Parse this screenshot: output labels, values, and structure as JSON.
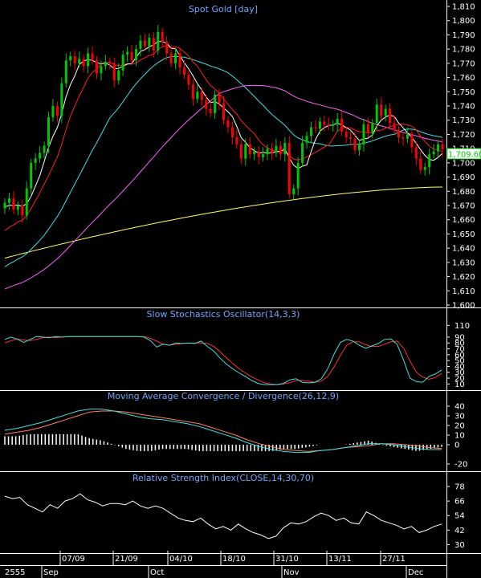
{
  "chart_data": [
    {
      "type": "candlestick",
      "title": "Spot Gold [day]",
      "ylim": [
        1600,
        1810
      ],
      "yticks": [
        1600,
        1610,
        1620,
        1630,
        1640,
        1650,
        1660,
        1670,
        1680,
        1690,
        1700,
        1710,
        1720,
        1730,
        1740,
        1750,
        1760,
        1770,
        1780,
        1790,
        1800,
        1810
      ],
      "last_price_label": "1,709.60",
      "colors": {
        "up": "#00c800",
        "down": "#ff0000",
        "ma5": "#ffffff",
        "ma10": "#ff2020",
        "ma25": "#40e0e0",
        "ma50": "#ff60ff",
        "ma200": "#ffff60"
      },
      "close": [
        1672,
        1675,
        1667,
        1670,
        1663,
        1682,
        1700,
        1703,
        1707,
        1712,
        1732,
        1740,
        1733,
        1756,
        1772,
        1775,
        1770,
        1773,
        1768,
        1777,
        1772,
        1763,
        1768,
        1771,
        1770,
        1758,
        1765,
        1776,
        1778,
        1772,
        1780,
        1786,
        1782,
        1788,
        1779,
        1792,
        1785,
        1777,
        1770,
        1777,
        1767,
        1762,
        1755,
        1745,
        1750,
        1744,
        1738,
        1735,
        1748,
        1742,
        1730,
        1725,
        1718,
        1713,
        1703,
        1713,
        1706,
        1708,
        1704,
        1706,
        1710,
        1707,
        1712,
        1706,
        1714,
        1678,
        1682,
        1700,
        1714,
        1719,
        1725,
        1724,
        1729,
        1727,
        1726,
        1727,
        1731,
        1722,
        1718,
        1717,
        1709,
        1713,
        1727,
        1721,
        1728,
        1741,
        1733,
        1738,
        1728,
        1723,
        1718,
        1717,
        1720,
        1711,
        1703,
        1695,
        1697,
        1706,
        1708,
        1713,
        1709.6
      ],
      "sto_k": [
        86,
        90,
        86,
        81,
        86,
        91,
        90,
        89,
        91,
        90,
        91,
        91,
        91,
        91,
        91,
        91,
        91,
        91,
        91,
        91,
        91,
        91,
        90,
        84,
        73,
        78,
        76,
        80,
        79,
        80,
        79,
        83,
        74,
        66,
        54,
        44,
        36,
        29,
        23,
        16,
        11,
        9,
        9,
        9,
        11,
        17,
        19,
        13,
        12,
        13,
        19,
        36,
        61,
        81,
        86,
        83,
        76,
        71,
        75,
        79,
        86,
        87,
        77,
        50,
        20,
        14,
        13,
        23,
        27,
        34
      ],
      "sto_d": [
        80,
        84,
        87,
        85,
        84,
        86,
        89,
        90,
        89,
        90,
        91,
        91,
        91,
        91,
        91,
        91,
        91,
        91,
        91,
        91,
        91,
        91,
        91,
        88,
        83,
        78,
        76,
        78,
        79,
        80,
        80,
        80,
        79,
        74,
        65,
        55,
        45,
        36,
        29,
        22,
        17,
        12,
        10,
        9,
        10,
        12,
        16,
        16,
        15,
        13,
        15,
        23,
        39,
        59,
        76,
        82,
        82,
        77,
        74,
        74,
        78,
        82,
        83,
        71,
        49,
        30,
        22,
        18,
        21,
        28
      ],
      "sto_ylim": [
        5,
        120
      ],
      "sto_yticks": [
        10,
        20,
        30,
        40,
        50,
        60,
        70,
        80,
        90,
        110
      ],
      "sto_title": "Slow Stochastics Oscillator(14,3,3)",
      "macd": [
        15,
        17,
        20,
        23,
        27,
        31,
        35,
        37,
        37,
        35,
        32,
        29,
        27,
        26,
        24,
        22,
        19,
        15,
        11,
        7,
        2,
        -2,
        -5,
        -7,
        -8,
        -8,
        -6,
        -5,
        -3,
        -1,
        1,
        1,
        0,
        -2,
        -4,
        -5,
        -5
      ],
      "macd_signal": [
        11,
        13,
        15,
        18,
        22,
        26,
        30,
        34,
        35,
        35,
        34,
        32,
        30,
        28,
        26,
        24,
        22,
        18,
        14,
        10,
        5,
        1,
        -2,
        -5,
        -6,
        -7,
        -6,
        -5,
        -3,
        -2,
        -1,
        1,
        1,
        0,
        -1,
        -3,
        -4
      ],
      "macd_ylim": [
        -25,
        45
      ],
      "macd_yticks": [
        -20,
        0,
        10,
        20,
        30,
        40
      ],
      "macd_tick_labels": [
        "-20",
        "0",
        "10",
        "20",
        "30",
        "40"
      ],
      "macd_title": "Moving Average Convergence / Divergence(26,12,9)",
      "rsi": [
        70,
        68,
        69,
        63,
        60,
        57,
        63,
        60,
        66,
        68,
        72,
        67,
        65,
        62,
        64,
        64,
        63,
        66,
        62,
        60,
        62,
        60,
        56,
        52,
        50,
        49,
        52,
        47,
        43,
        45,
        42,
        47,
        43,
        40,
        38,
        35,
        37,
        44,
        48,
        47,
        49,
        53,
        56,
        54,
        50,
        52,
        48,
        47,
        57,
        54,
        50,
        48,
        46,
        43,
        45,
        40,
        42,
        45,
        47
      ],
      "rsi_ylim": [
        25,
        82
      ],
      "rsi_yticks": [
        30,
        42,
        54,
        66,
        78
      ],
      "rsi_title": "Relative Strength Index(CLOSE,14,30,70)",
      "x_date_labels": [
        "07/09",
        "21/09",
        "04/10",
        "18/10",
        "31/10",
        "13/11",
        "27/11"
      ],
      "x_month_labels": [
        "2555",
        "Sep",
        "Oct",
        "Nov",
        "Dec"
      ]
    }
  ]
}
